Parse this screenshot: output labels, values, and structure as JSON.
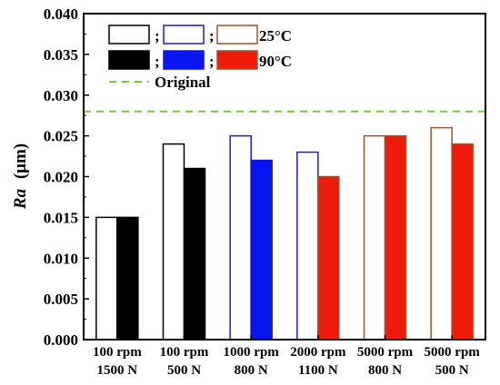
{
  "chart_data": {
    "type": "bar",
    "categories": [
      [
        "100 rpm",
        "1500 N"
      ],
      [
        "100 rpm",
        "500 N"
      ],
      [
        "1000 rpm",
        "800 N"
      ],
      [
        "2000 rpm",
        "1100 N"
      ],
      [
        "5000 rpm",
        "800 N"
      ],
      [
        "5000 rpm",
        "500 N"
      ]
    ],
    "series": [
      {
        "name": "25°C",
        "values": [
          0.015,
          0.024,
          0.025,
          0.023,
          0.025,
          0.026
        ]
      },
      {
        "name": "90°C",
        "values": [
          0.015,
          0.021,
          0.022,
          0.02,
          0.025,
          0.024
        ]
      }
    ],
    "group_colors": [
      "#000000",
      "#000000",
      "#1a1adf",
      "#1a1adf",
      "#a0522d",
      "#a0522d"
    ],
    "group_fill_colors": [
      "#000000",
      "#000000",
      "#0a14ee",
      "#ee1a0a",
      "#ee1a0a",
      "#ee1a0a"
    ],
    "reference_line": {
      "name": "Original",
      "value": 0.028,
      "color": "#6fcf3a",
      "style": "dashed"
    },
    "ylabel_italic": "Ra",
    "ylabel_unit": "(μm)",
    "xlabel": "",
    "ylim": [
      0,
      0.04
    ],
    "yticks": [
      "0.000",
      "0.005",
      "0.010",
      "0.015",
      "0.020",
      "0.025",
      "0.030",
      "0.035",
      "0.040"
    ],
    "grid": false,
    "legend": {
      "placement": "top-left",
      "separators": [
        ";",
        ";",
        ";",
        ";"
      ],
      "label_25": "25°C",
      "label_90": "90°C",
      "label_original": "Original"
    }
  }
}
